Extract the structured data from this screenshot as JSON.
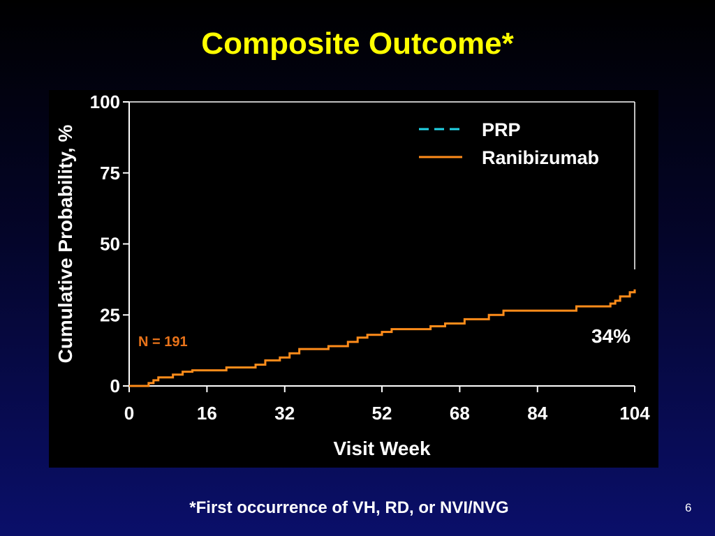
{
  "slide": {
    "title": "Composite Outcome*",
    "footnote": "*First occurrence of VH, RD, or NVI/NVG",
    "page_number": "6"
  },
  "colors": {
    "title": "#ffff00",
    "prp": "#22d3e6",
    "ranibizumab": "#ff8c1a",
    "n_label": "#e8731a"
  },
  "chart_data": {
    "type": "line",
    "xlabel": "Visit Week",
    "ylabel": "Cumulative Probability, %",
    "xlim": [
      0,
      104
    ],
    "ylim": [
      0,
      100
    ],
    "xticks": [
      0,
      16,
      32,
      52,
      68,
      84,
      104
    ],
    "yticks": [
      0,
      25,
      50,
      75,
      100
    ],
    "legend_position": "top-right",
    "annotations": {
      "n_label": "N = 191",
      "end_value": "34%"
    },
    "series": [
      {
        "name": "PRP",
        "style": "dashed",
        "x": [],
        "y": []
      },
      {
        "name": "Ranibizumab",
        "style": "solid-step",
        "x": [
          0,
          4,
          5,
          6,
          9,
          11,
          13,
          20,
          26,
          28,
          31,
          33,
          35,
          41,
          45,
          47,
          49,
          52,
          54,
          62,
          65,
          69,
          74,
          77,
          92,
          99,
          100,
          101,
          103,
          104
        ],
        "y": [
          0,
          1,
          2,
          3,
          4,
          5,
          5.5,
          6.5,
          7.5,
          9,
          10,
          11.5,
          13,
          14,
          15.5,
          17,
          18,
          19,
          20,
          21,
          22,
          23.5,
          25,
          26.5,
          28,
          29,
          30,
          31.5,
          33,
          34
        ]
      }
    ]
  }
}
